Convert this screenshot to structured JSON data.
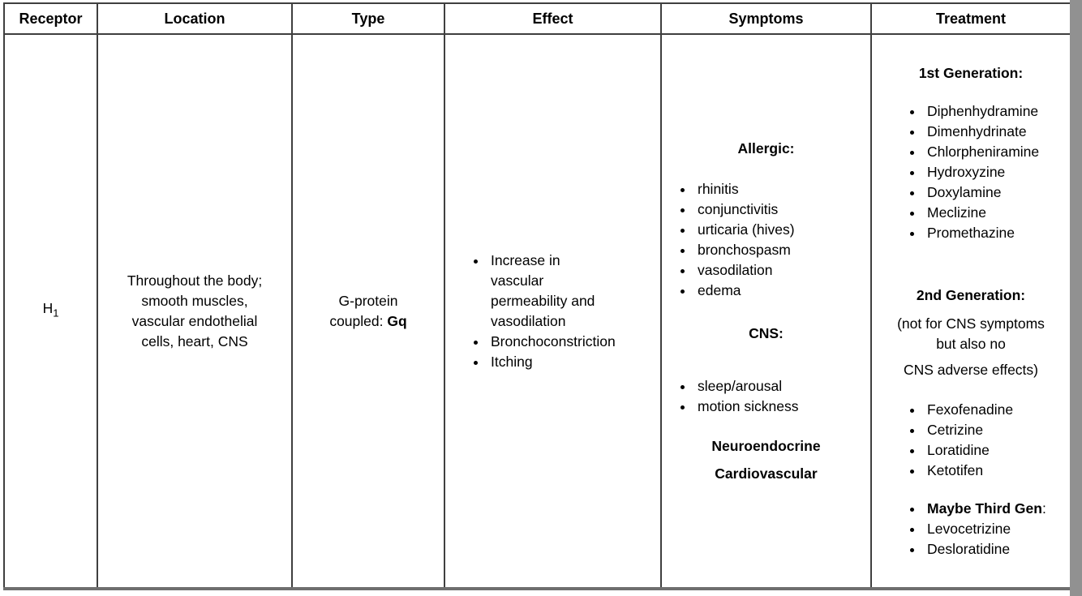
{
  "page": {
    "background_color": "#ffffff",
    "border_color": "#3f3f3f",
    "scrollbar_color": "#919191"
  },
  "table": {
    "headers": [
      "Receptor",
      "Location",
      "Type",
      "Effect",
      "Symptoms",
      "Treatment"
    ],
    "row": {
      "receptor": {
        "base": "H",
        "subscript": "1"
      },
      "location": "Throughout the body;\nsmooth muscles,\nvascular endothelial\ncells, heart, CNS",
      "type": {
        "line1": "G-protein",
        "line2_prefix": "coupled: ",
        "line2_bold": "Gq"
      },
      "effect": {
        "items": [
          "Increase in\nvascular\npermeability and\nvasodilation",
          "Bronchoconstriction",
          "Itching"
        ]
      },
      "symptoms": {
        "allergic_heading": "Allergic:",
        "allergic_items": [
          "rhinitis",
          "conjunctivitis",
          "urticaria (hives)",
          "bronchospasm",
          "vasodilation",
          "edema"
        ],
        "cns_heading": "CNS:",
        "cns_items": [
          "sleep/arousal",
          "motion sickness"
        ],
        "neuroendocrine_heading": "Neuroendocrine",
        "cardiovascular_heading": "Cardiovascular"
      },
      "treatment": {
        "first_gen_heading": "1st Generation:",
        "first_gen_items": [
          "Diphenhydramine",
          "Dimenhydrinate",
          "Chlorpheniramine",
          "Hydroxyzine",
          "Doxylamine",
          "Meclizine",
          "Promethazine"
        ],
        "second_gen_heading": "2nd Generation:",
        "second_gen_note_line1": "(not for CNS symptoms\nbut also no",
        "second_gen_note_line2": "CNS adverse effects)",
        "second_gen_items": [
          "Fexofenadine",
          "Cetrizine",
          "Loratidine",
          "Ketotifen"
        ],
        "third_gen_label_bold": "Maybe Third Gen",
        "third_gen_label_colon": ":",
        "third_gen_items": [
          "Levocetrizine",
          "Desloratidine"
        ]
      }
    }
  }
}
